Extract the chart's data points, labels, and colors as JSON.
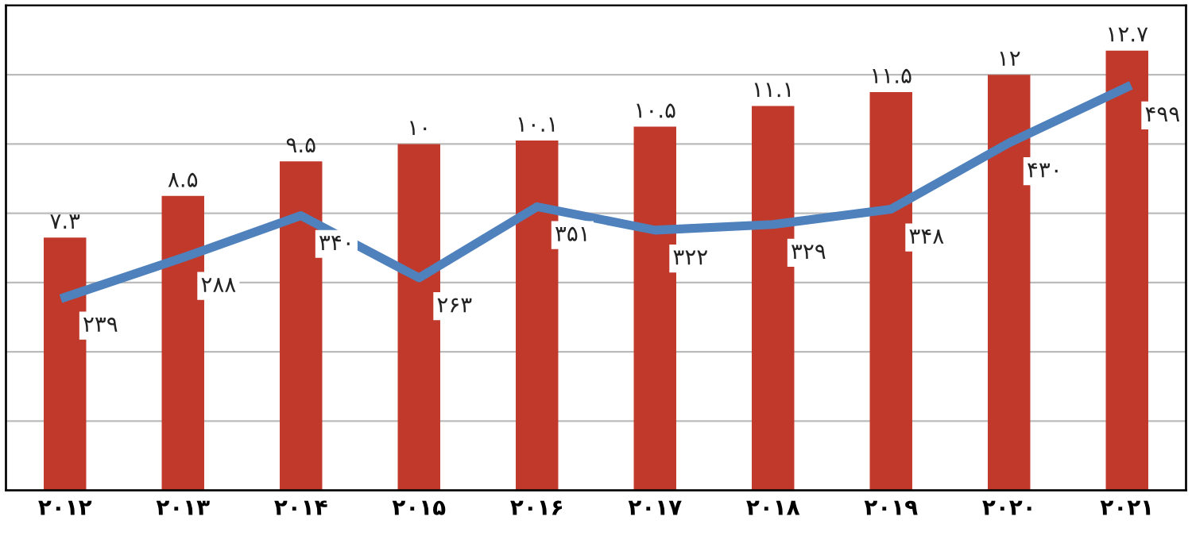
{
  "chart_data": {
    "type": "bar",
    "categories": [
      "۲۰۱۲",
      "۲۰۱۳",
      "۲۰۱۴",
      "۲۰۱۵",
      "۲۰۱۶",
      "۲۰۱۷",
      "۲۰۱۸",
      "۲۰۱۹",
      "۲۰۲۰",
      "۲۰۲۱"
    ],
    "series": [
      {
        "color": "#c0392b",
        "values": [
          7.3,
          8.5,
          9.5,
          10,
          10.1,
          10.5,
          11.1,
          11.5,
          12,
          12.7
        ],
        "value_labels": [
          "۷.۳",
          "۸.۵",
          "۹.۵",
          "۱۰",
          "۱۰.۱",
          "۱۰.۵",
          "۱۱.۱",
          "۱۱.۵",
          "۱۲",
          "۱۲.۷"
        ]
      },
      {
        "type": "line",
        "axis": "y2",
        "color": "#4f81bd",
        "values": [
          239,
          288,
          340,
          263,
          351,
          322,
          329,
          348,
          430,
          499
        ],
        "value_labels": [
          "۲۳۹",
          "۲۸۸",
          "۳۴۰",
          "۲۶۳",
          "۳۵۱",
          "۳۲۲",
          "۳۲۹",
          "۳۴۸",
          "۴۳۰",
          "۴۹۹"
        ]
      }
    ],
    "ylim": [
      0,
      14
    ],
    "yticks": [
      {
        "value": 0,
        "label": null
      },
      {
        "value": 2,
        "label": null
      },
      {
        "value": 4,
        "label": null
      },
      {
        "value": 6,
        "label": null
      },
      {
        "value": 8,
        "label": null
      },
      {
        "value": 10,
        "label": null
      },
      {
        "value": 12,
        "label": null
      },
      {
        "value": 14,
        "label": null
      }
    ],
    "y2lim": [
      0,
      600
    ],
    "grid": "y",
    "tick_labels": "x",
    "line_style": "solid",
    "marker": "none",
    "legend": false
  }
}
